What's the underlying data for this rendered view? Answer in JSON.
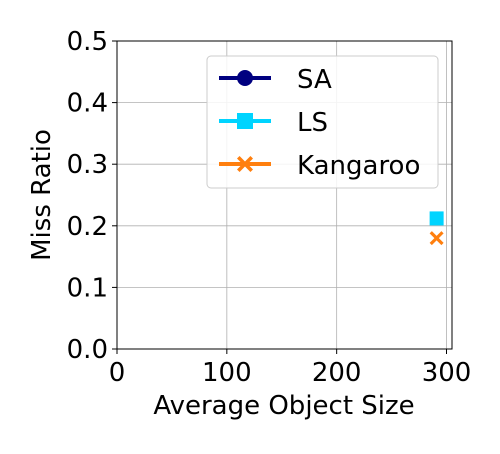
{
  "chart_data": {
    "type": "scatter",
    "title": "",
    "xlabel": "Average Object Size",
    "ylabel": "Miss Ratio",
    "xlim": [
      0,
      305
    ],
    "ylim": [
      0,
      0.5
    ],
    "xticks": [
      0,
      100,
      200,
      300
    ],
    "yticks": [
      0.0,
      0.1,
      0.2,
      0.3,
      0.4,
      0.5
    ],
    "xtick_labels": [
      "0",
      "100",
      "200",
      "300"
    ],
    "ytick_labels": [
      "0.0",
      "0.1",
      "0.2",
      "0.3",
      "0.4",
      "0.5"
    ],
    "grid": true,
    "legend_position": "top-right",
    "series": [
      {
        "name": "SA",
        "marker": "circle",
        "color": "#000080",
        "points": []
      },
      {
        "name": "LS",
        "marker": "square",
        "color": "#00d4ff",
        "points": [
          {
            "x": 291,
            "y": 0.212
          }
        ]
      },
      {
        "name": "Kangaroo",
        "marker": "x",
        "color": "#ff7f0e",
        "points": [
          {
            "x": 291,
            "y": 0.18
          }
        ]
      }
    ]
  }
}
